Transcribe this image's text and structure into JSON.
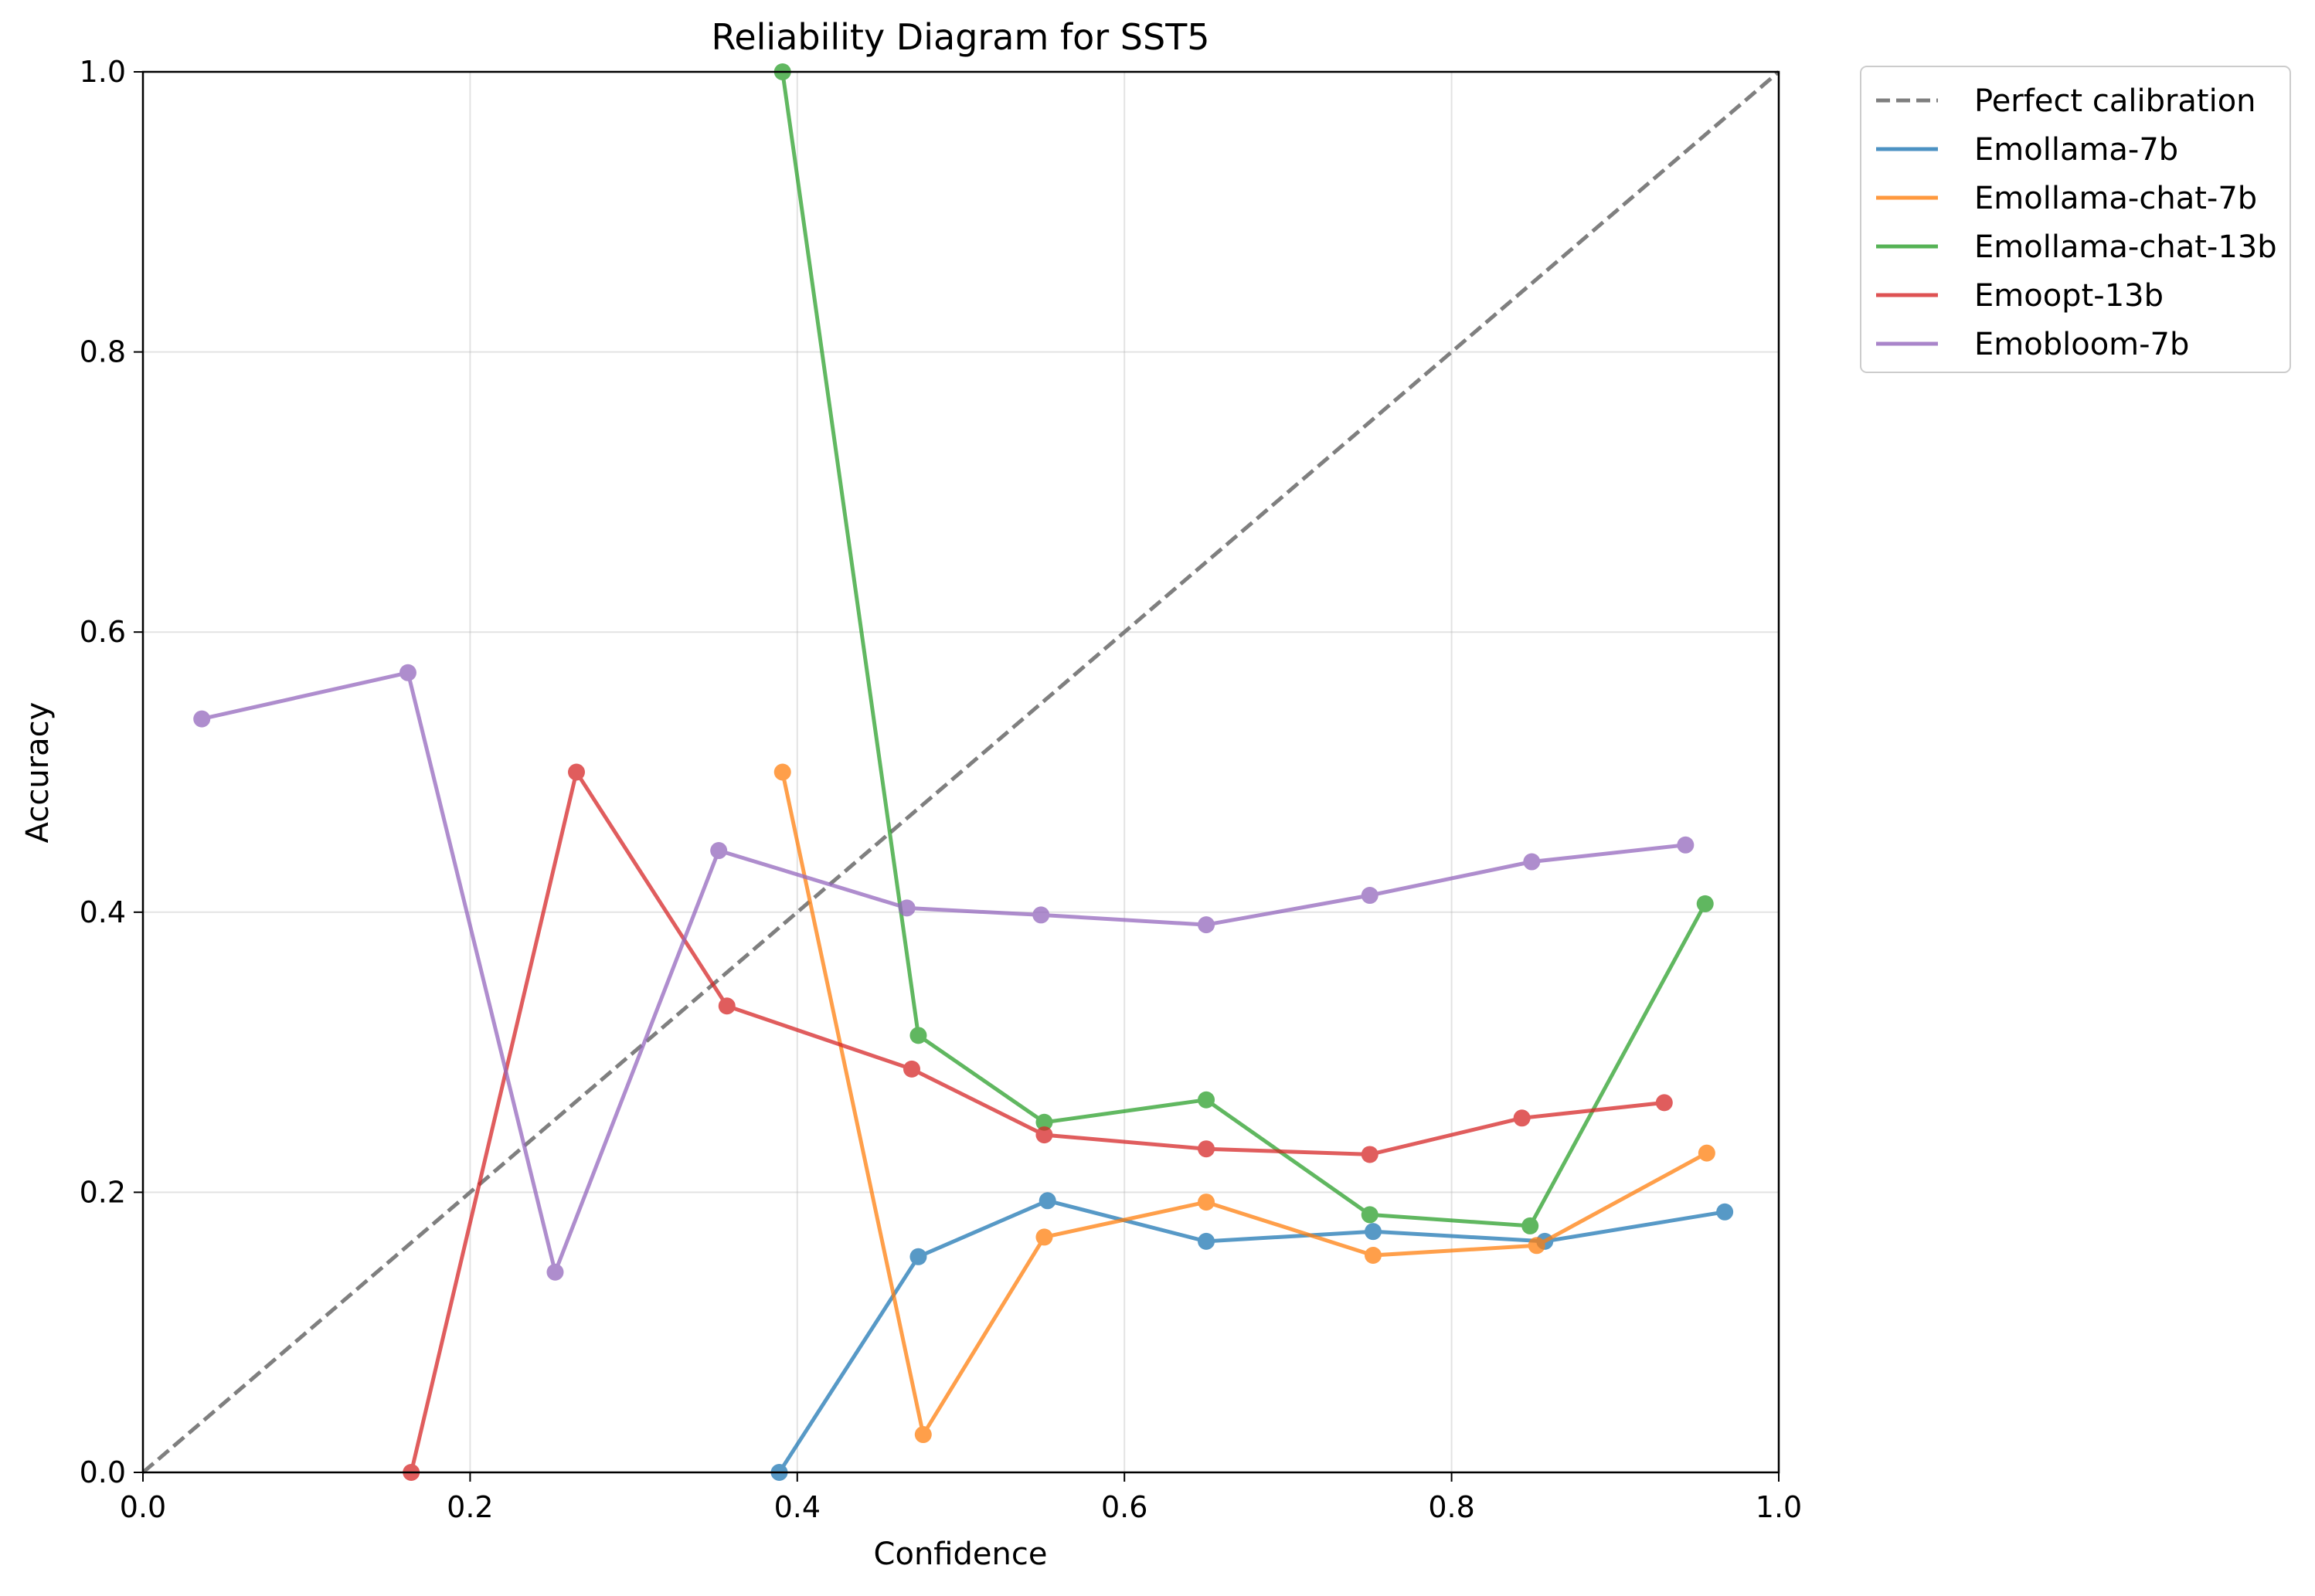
{
  "chart_data": {
    "type": "line",
    "title": "Reliability Diagram for SST5",
    "xlabel": "Confidence",
    "ylabel": "Accuracy",
    "xlim": [
      0,
      1
    ],
    "ylim": [
      0,
      1
    ],
    "xticks": [
      "0.0",
      "0.2",
      "0.4",
      "0.6",
      "0.8",
      "1.0"
    ],
    "yticks": [
      "0.0",
      "0.2",
      "0.4",
      "0.6",
      "0.8",
      "1.0"
    ],
    "grid": true,
    "legend_position": "outside-top-right",
    "reference": {
      "name": "Perfect calibration",
      "x": [
        0,
        1
      ],
      "y": [
        0,
        1
      ],
      "color": "#7f7f7f",
      "style": "dashed"
    },
    "series": [
      {
        "name": "Emollama-7b",
        "color": "#1f77b4",
        "x": [
          0.389,
          0.474,
          0.553,
          0.65,
          0.752,
          0.857,
          0.967
        ],
        "y": [
          0.0,
          0.154,
          0.194,
          0.165,
          0.172,
          0.165,
          0.186
        ]
      },
      {
        "name": "Emollama-chat-7b",
        "color": "#ff7f0e",
        "x": [
          0.391,
          0.477,
          0.551,
          0.65,
          0.752,
          0.852,
          0.956
        ],
        "y": [
          0.5,
          0.027,
          0.168,
          0.193,
          0.155,
          0.162,
          0.228
        ]
      },
      {
        "name": "Emollama-chat-13b",
        "color": "#2ca02c",
        "x": [
          0.391,
          0.474,
          0.551,
          0.65,
          0.75,
          0.848,
          0.955
        ],
        "y": [
          1.0,
          0.312,
          0.25,
          0.266,
          0.184,
          0.176,
          0.406
        ]
      },
      {
        "name": "Emoopt-13b",
        "color": "#d62728",
        "x": [
          0.164,
          0.265,
          0.357,
          0.47,
          0.551,
          0.65,
          0.75,
          0.843,
          0.93
        ],
        "y": [
          0.0,
          0.5,
          0.333,
          0.288,
          0.241,
          0.231,
          0.227,
          0.253,
          0.264
        ]
      },
      {
        "name": "Emobloom-7b",
        "color": "#9467bd",
        "x": [
          0.036,
          0.162,
          0.252,
          0.352,
          0.467,
          0.549,
          0.65,
          0.75,
          0.849,
          0.943
        ],
        "y": [
          0.538,
          0.571,
          0.143,
          0.444,
          0.403,
          0.398,
          0.391,
          0.412,
          0.436,
          0.448
        ]
      }
    ]
  }
}
